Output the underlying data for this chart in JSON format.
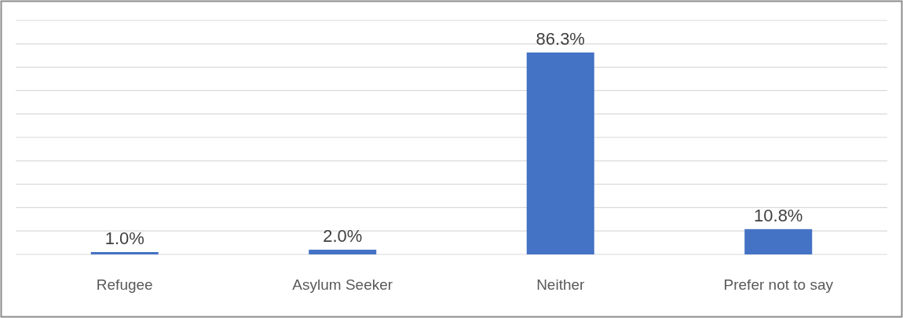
{
  "chart_data": {
    "type": "bar",
    "categories": [
      "Refugee",
      "Asylum Seeker",
      "Neither",
      "Prefer not to say"
    ],
    "values": [
      1.0,
      2.0,
      86.3,
      10.8
    ],
    "value_labels": [
      "1.0%",
      "2.0%",
      "86.3%",
      "10.8%"
    ],
    "color": "#4472c4",
    "ylim": [
      0,
      100
    ],
    "yticks": [
      {
        "value": 0,
        "label": null
      },
      {
        "value": 10,
        "label": null
      },
      {
        "value": 20,
        "label": null
      },
      {
        "value": 30,
        "label": null
      },
      {
        "value": 40,
        "label": null
      },
      {
        "value": 50,
        "label": null
      },
      {
        "value": 60,
        "label": null
      },
      {
        "value": 70,
        "label": null
      },
      {
        "value": 80,
        "label": null
      },
      {
        "value": 90,
        "label": null
      },
      {
        "value": 100,
        "label": null
      }
    ],
    "tick_labels": "x",
    "grid": "y"
  }
}
